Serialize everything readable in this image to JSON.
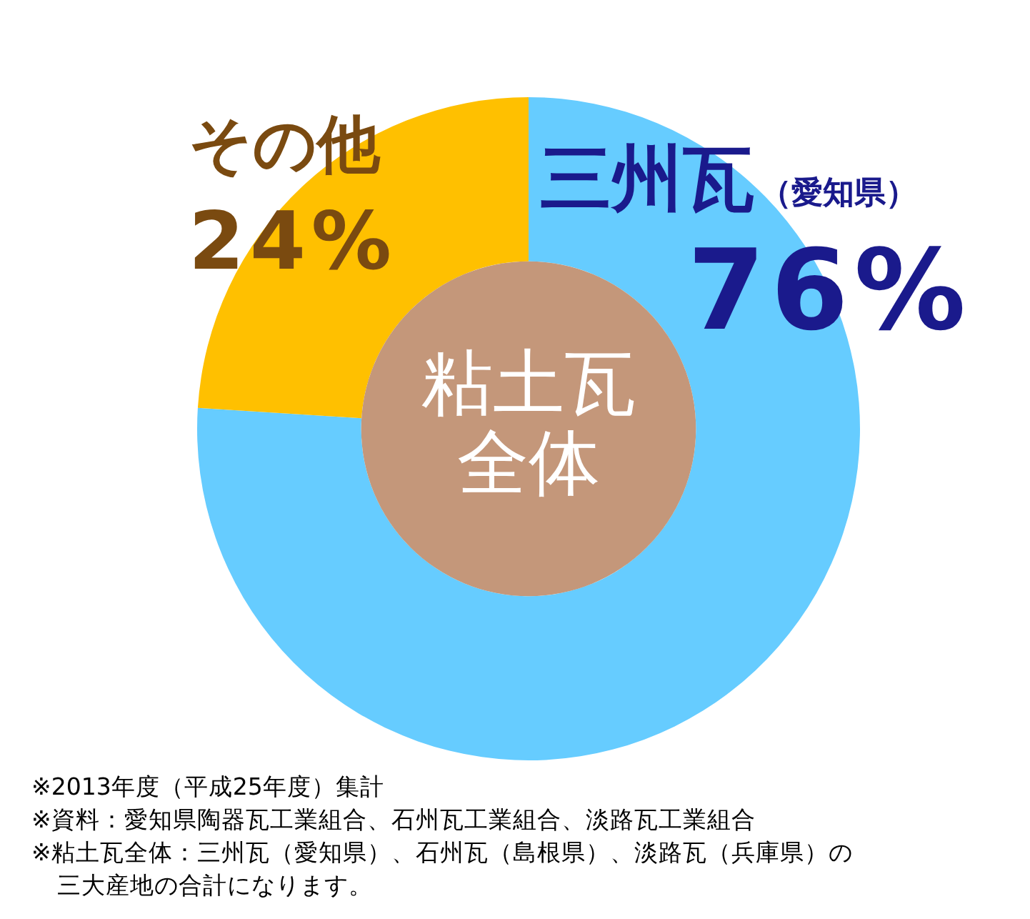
{
  "chart_data": {
    "type": "donut",
    "categories": [
      "三州瓦（愛知県）",
      "その他"
    ],
    "values": [
      76,
      24
    ],
    "colors": [
      "#66ccff",
      "#ffc000"
    ],
    "value_labels": [
      "76%",
      "24%"
    ],
    "annotations": [
      "粘土瓦",
      "全体",
      "※2013年度（平成25年度）集計",
      "※資料：愛知県陶器瓦工業組合、石州瓦工業組合、淡路瓦工業組合",
      "※粘土瓦全体：三州瓦（愛知県）、石州瓦（島根県）、淡路瓦（兵庫県）の",
      "三大産地の合計になります。"
    ]
  }
}
